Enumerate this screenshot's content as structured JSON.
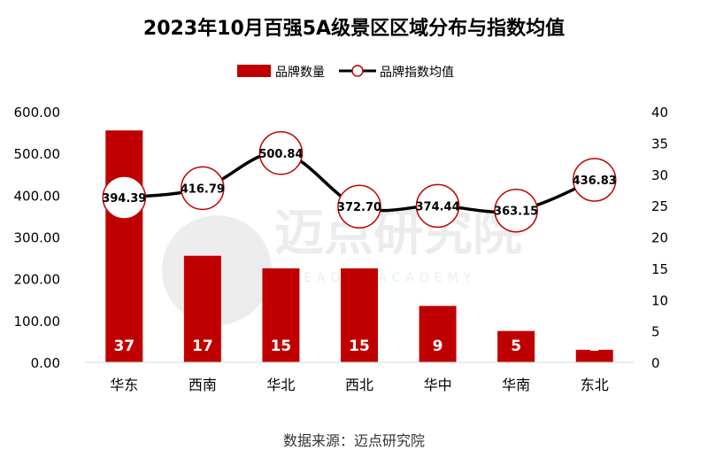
{
  "chart_data": {
    "type": "bar+line",
    "title": "2023年10月百强5A级景区区域分布与指数均值",
    "categories": [
      "华东",
      "西南",
      "华北",
      "西北",
      "华中",
      "华南",
      "东北"
    ],
    "series": [
      {
        "name": "品牌数量",
        "type": "bar",
        "axis": "right",
        "values": [
          37,
          17,
          15,
          15,
          9,
          5,
          2
        ],
        "labels": [
          "37",
          "17",
          "15",
          "15",
          "9",
          "5",
          "2"
        ]
      },
      {
        "name": "品牌指数均值",
        "type": "line",
        "axis": "left",
        "values": [
          394.39,
          416.79,
          500.84,
          372.7,
          374.44,
          363.15,
          436.83
        ],
        "labels": [
          "394.39",
          "416.79",
          "500.84",
          "372.70",
          "374.44",
          "363.15",
          "436.83"
        ]
      }
    ],
    "y_left": {
      "ylim": [
        0,
        600
      ],
      "ticks": [
        "0.00",
        "100.00",
        "200.00",
        "300.00",
        "400.00",
        "500.00",
        "600.00"
      ]
    },
    "y_right": {
      "ylim": [
        0,
        40
      ],
      "ticks": [
        "0",
        "5",
        "10",
        "15",
        "20",
        "25",
        "30",
        "35",
        "40"
      ]
    },
    "legend_position": "top-center",
    "colors": {
      "bar": "#c00000",
      "line": "#000000",
      "marker_stroke": "#c00000",
      "marker_fill": "#ffffff",
      "bar_label": "#ffffff"
    },
    "source": "数据来源：迈点研究院",
    "watermark": {
      "text": "迈点研究院",
      "subtext": "MEADIN ACADEMY"
    }
  }
}
